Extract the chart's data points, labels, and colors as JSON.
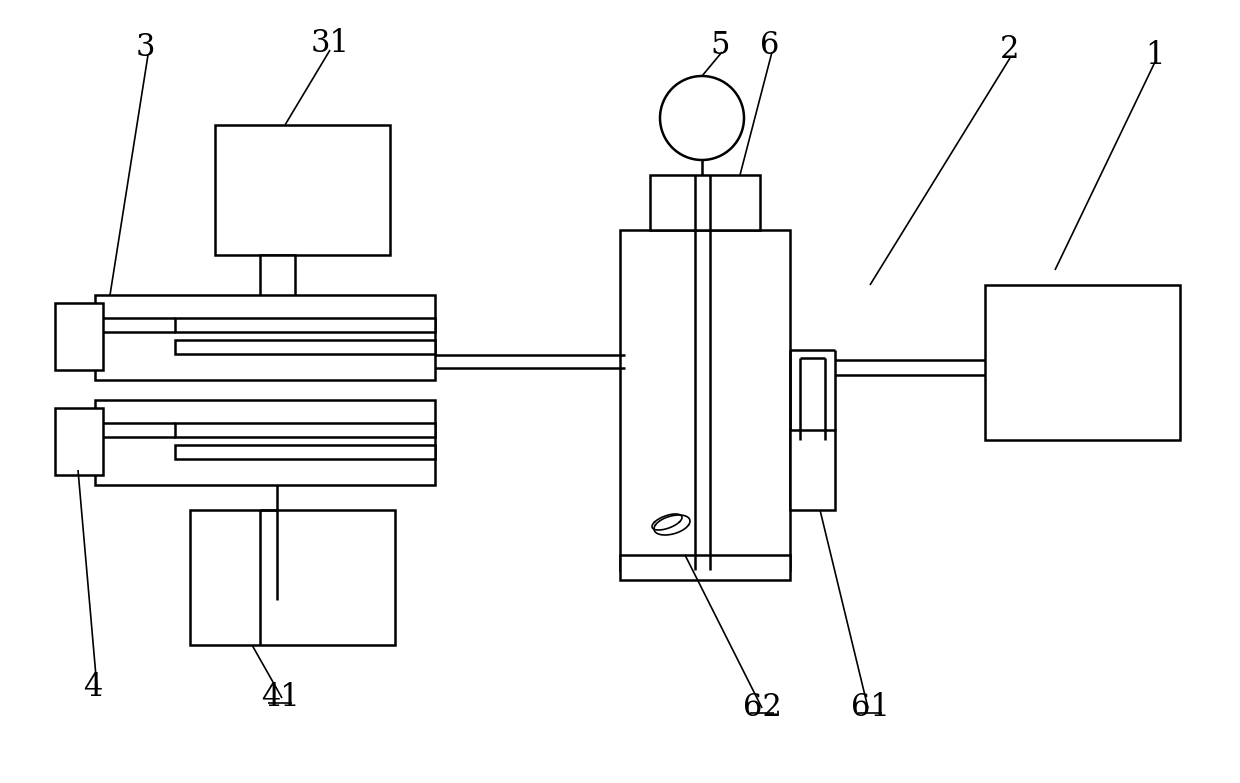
{
  "bg_color": "#ffffff",
  "line_color": "#000000",
  "lw": 1.8,
  "tlw": 1.2,
  "fig_width": 12.4,
  "fig_height": 7.83
}
